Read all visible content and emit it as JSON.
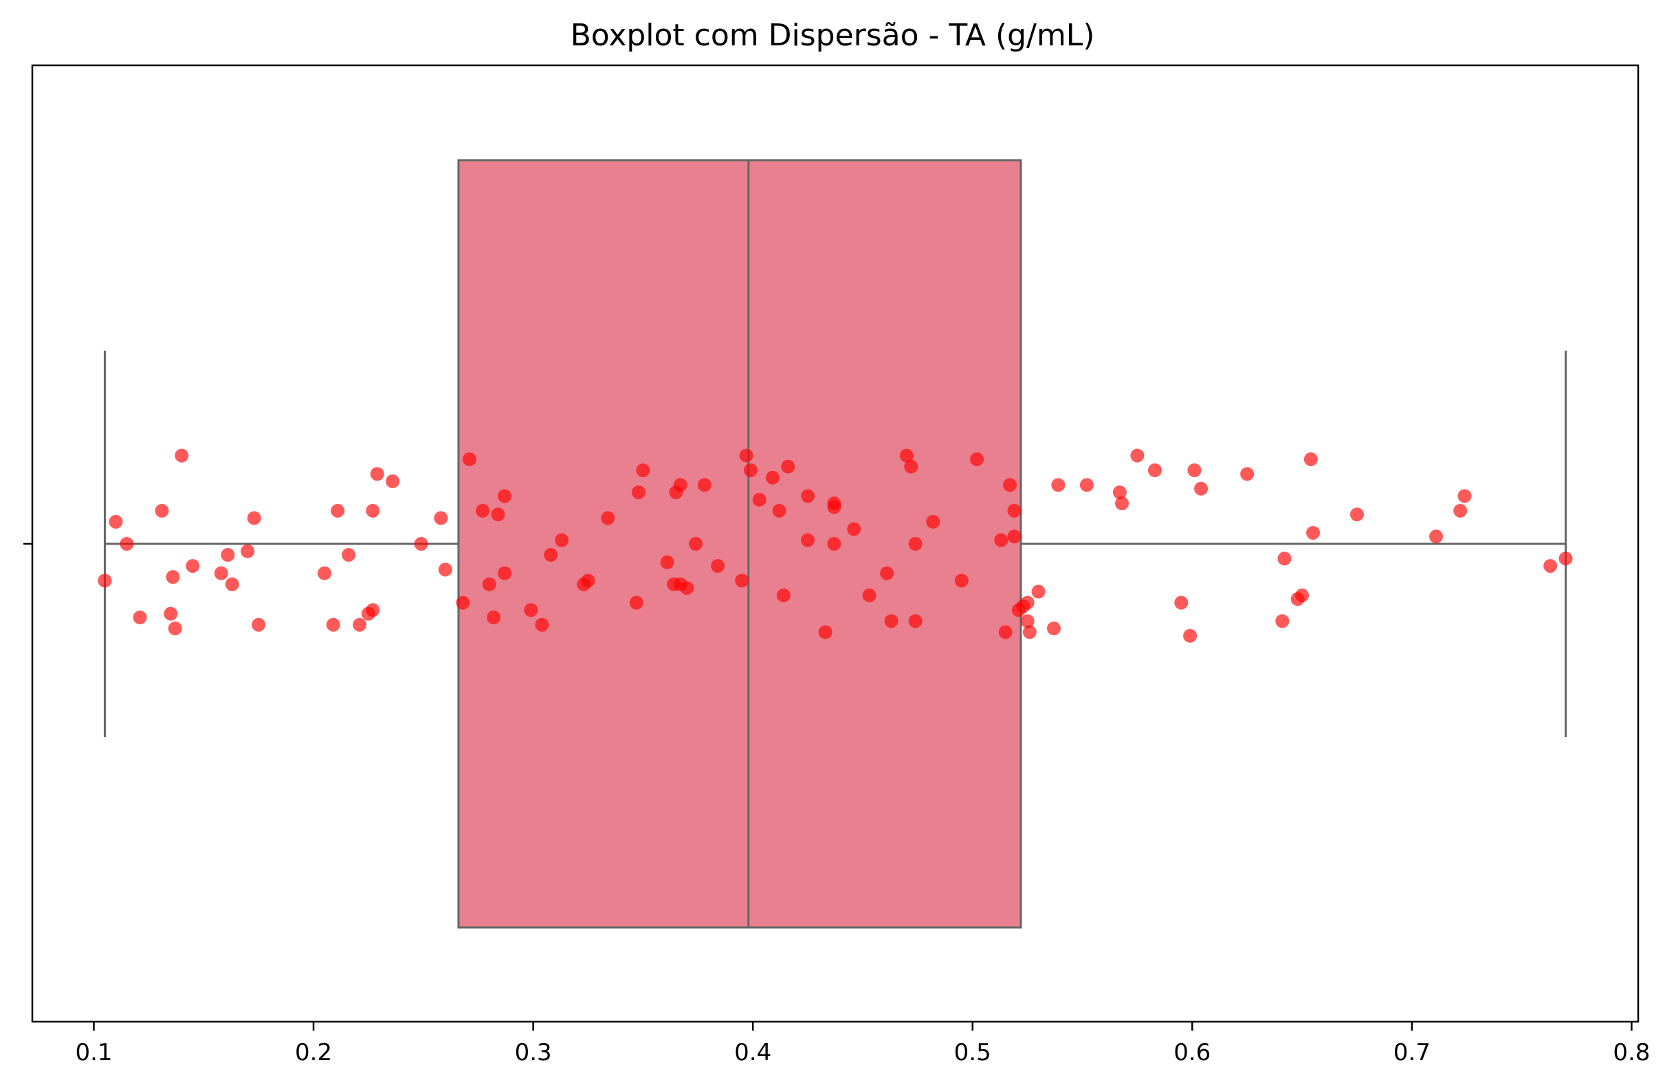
{
  "chart_data": {
    "type": "boxplot",
    "title": "Boxplot com Dispersão - TA (g/mL)",
    "xlabel": "",
    "ylabel": "",
    "xlim": [
      0.072,
      0.803
    ],
    "x_ticks": [
      "0.1",
      "0.2",
      "0.3",
      "0.4",
      "0.5",
      "0.6",
      "0.7",
      "0.8"
    ],
    "x_tick_values": [
      0.1,
      0.2,
      0.3,
      0.4,
      0.5,
      0.6,
      0.7,
      0.8
    ],
    "grid": false,
    "box": {
      "whisker_low": 0.105,
      "q1": 0.266,
      "median": 0.398,
      "q3": 0.522,
      "whisker_high": 0.77,
      "color": "#e8808f",
      "edge_color": "#666666"
    },
    "points_color": "#ff0000",
    "points": [
      {
        "x": 0.105,
        "y": -0.1
      },
      {
        "x": 0.11,
        "y": 0.06
      },
      {
        "x": 0.115,
        "y": 0.0
      },
      {
        "x": 0.121,
        "y": -0.2
      },
      {
        "x": 0.131,
        "y": 0.09
      },
      {
        "x": 0.135,
        "y": -0.19
      },
      {
        "x": 0.136,
        "y": -0.09
      },
      {
        "x": 0.137,
        "y": -0.23
      },
      {
        "x": 0.14,
        "y": 0.24
      },
      {
        "x": 0.145,
        "y": -0.06
      },
      {
        "x": 0.158,
        "y": -0.08
      },
      {
        "x": 0.161,
        "y": -0.03
      },
      {
        "x": 0.163,
        "y": -0.11
      },
      {
        "x": 0.17,
        "y": -0.02
      },
      {
        "x": 0.173,
        "y": 0.07
      },
      {
        "x": 0.175,
        "y": -0.22
      },
      {
        "x": 0.205,
        "y": -0.08
      },
      {
        "x": 0.209,
        "y": -0.22
      },
      {
        "x": 0.211,
        "y": 0.09
      },
      {
        "x": 0.216,
        "y": -0.03
      },
      {
        "x": 0.221,
        "y": -0.22
      },
      {
        "x": 0.225,
        "y": -0.19
      },
      {
        "x": 0.227,
        "y": -0.18
      },
      {
        "x": 0.227,
        "y": 0.09
      },
      {
        "x": 0.229,
        "y": 0.19
      },
      {
        "x": 0.236,
        "y": 0.17
      },
      {
        "x": 0.249,
        "y": 0.0
      },
      {
        "x": 0.258,
        "y": 0.07
      },
      {
        "x": 0.26,
        "y": -0.07
      },
      {
        "x": 0.268,
        "y": -0.16
      },
      {
        "x": 0.271,
        "y": 0.23
      },
      {
        "x": 0.277,
        "y": 0.09
      },
      {
        "x": 0.28,
        "y": -0.11
      },
      {
        "x": 0.282,
        "y": -0.2
      },
      {
        "x": 0.284,
        "y": 0.08
      },
      {
        "x": 0.287,
        "y": 0.13
      },
      {
        "x": 0.287,
        "y": -0.08
      },
      {
        "x": 0.299,
        "y": -0.18
      },
      {
        "x": 0.304,
        "y": -0.22
      },
      {
        "x": 0.308,
        "y": -0.03
      },
      {
        "x": 0.313,
        "y": 0.01
      },
      {
        "x": 0.323,
        "y": -0.11
      },
      {
        "x": 0.325,
        "y": -0.1
      },
      {
        "x": 0.334,
        "y": 0.07
      },
      {
        "x": 0.347,
        "y": -0.16
      },
      {
        "x": 0.348,
        "y": 0.14
      },
      {
        "x": 0.35,
        "y": 0.2
      },
      {
        "x": 0.361,
        "y": -0.05
      },
      {
        "x": 0.364,
        "y": -0.11
      },
      {
        "x": 0.365,
        "y": 0.14
      },
      {
        "x": 0.367,
        "y": 0.16
      },
      {
        "x": 0.367,
        "y": -0.11
      },
      {
        "x": 0.37,
        "y": -0.12
      },
      {
        "x": 0.374,
        "y": 0.0
      },
      {
        "x": 0.378,
        "y": 0.16
      },
      {
        "x": 0.384,
        "y": -0.06
      },
      {
        "x": 0.395,
        "y": -0.1
      },
      {
        "x": 0.397,
        "y": 0.24
      },
      {
        "x": 0.399,
        "y": 0.2
      },
      {
        "x": 0.403,
        "y": 0.12
      },
      {
        "x": 0.409,
        "y": 0.18
      },
      {
        "x": 0.412,
        "y": 0.09
      },
      {
        "x": 0.414,
        "y": -0.14
      },
      {
        "x": 0.416,
        "y": 0.21
      },
      {
        "x": 0.425,
        "y": 0.01
      },
      {
        "x": 0.425,
        "y": 0.13
      },
      {
        "x": 0.433,
        "y": -0.24
      },
      {
        "x": 0.437,
        "y": 0.1
      },
      {
        "x": 0.437,
        "y": 0.11
      },
      {
        "x": 0.437,
        "y": 0.0
      },
      {
        "x": 0.446,
        "y": 0.04
      },
      {
        "x": 0.453,
        "y": -0.14
      },
      {
        "x": 0.461,
        "y": -0.08
      },
      {
        "x": 0.463,
        "y": -0.21
      },
      {
        "x": 0.47,
        "y": 0.24
      },
      {
        "x": 0.472,
        "y": 0.21
      },
      {
        "x": 0.474,
        "y": 0.0
      },
      {
        "x": 0.474,
        "y": -0.21
      },
      {
        "x": 0.482,
        "y": 0.06
      },
      {
        "x": 0.495,
        "y": -0.1
      },
      {
        "x": 0.502,
        "y": 0.23
      },
      {
        "x": 0.513,
        "y": 0.01
      },
      {
        "x": 0.515,
        "y": -0.24
      },
      {
        "x": 0.517,
        "y": 0.16
      },
      {
        "x": 0.519,
        "y": 0.09
      },
      {
        "x": 0.519,
        "y": 0.02
      },
      {
        "x": 0.521,
        "y": -0.18
      },
      {
        "x": 0.523,
        "y": -0.17
      },
      {
        "x": 0.525,
        "y": -0.21
      },
      {
        "x": 0.525,
        "y": -0.16
      },
      {
        "x": 0.526,
        "y": -0.24
      },
      {
        "x": 0.53,
        "y": -0.13
      },
      {
        "x": 0.537,
        "y": -0.23
      },
      {
        "x": 0.539,
        "y": 0.16
      },
      {
        "x": 0.552,
        "y": 0.16
      },
      {
        "x": 0.567,
        "y": 0.14
      },
      {
        "x": 0.568,
        "y": 0.11
      },
      {
        "x": 0.575,
        "y": 0.24
      },
      {
        "x": 0.583,
        "y": 0.2
      },
      {
        "x": 0.595,
        "y": -0.16
      },
      {
        "x": 0.599,
        "y": -0.25
      },
      {
        "x": 0.601,
        "y": 0.2
      },
      {
        "x": 0.604,
        "y": 0.15
      },
      {
        "x": 0.625,
        "y": 0.19
      },
      {
        "x": 0.641,
        "y": -0.21
      },
      {
        "x": 0.642,
        "y": -0.04
      },
      {
        "x": 0.648,
        "y": -0.15
      },
      {
        "x": 0.65,
        "y": -0.14
      },
      {
        "x": 0.654,
        "y": 0.23
      },
      {
        "x": 0.655,
        "y": 0.03
      },
      {
        "x": 0.675,
        "y": 0.08
      },
      {
        "x": 0.711,
        "y": 0.02
      },
      {
        "x": 0.722,
        "y": 0.09
      },
      {
        "x": 0.724,
        "y": 0.13
      },
      {
        "x": 0.763,
        "y": -0.06
      },
      {
        "x": 0.77,
        "y": -0.04
      }
    ]
  }
}
